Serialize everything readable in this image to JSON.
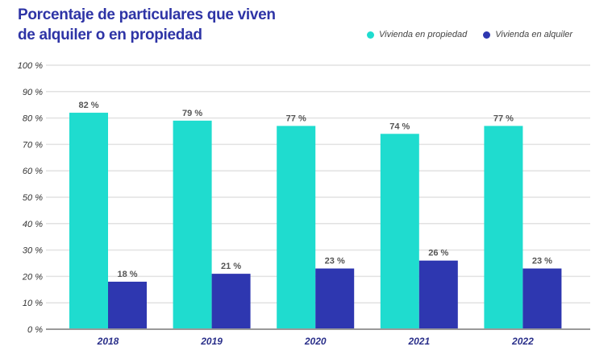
{
  "chart_data": {
    "type": "bar",
    "title": "Porcentaje de particulares que viven de alquiler o en propiedad",
    "title_lines": [
      "Porcentaje de particulares que viven",
      "de alquiler o en propiedad"
    ],
    "categories": [
      "2018",
      "2019",
      "2020",
      "2021",
      "2022"
    ],
    "series": [
      {
        "name": "Vivienda en propiedad",
        "color": "#1fdccf",
        "values": [
          82,
          79,
          77,
          74,
          77
        ],
        "labels": [
          "82 %",
          "79 %",
          "77 %",
          "74 %",
          "77 %"
        ]
      },
      {
        "name": "Vivienda en alquiler",
        "color": "#2e37b0",
        "values": [
          18,
          21,
          23,
          26,
          23
        ],
        "labels": [
          "18 %",
          "21 %",
          "23 %",
          "26 %",
          "23 %"
        ]
      }
    ],
    "yticks": [
      "0 %",
      "10 %",
      "20 %",
      "30 %",
      "40 %",
      "50 %",
      "60 %",
      "70 %",
      "80 %",
      "90 %",
      "100 %"
    ],
    "ylim": [
      0,
      100
    ],
    "xlabel": "",
    "ylabel": "",
    "grid": true,
    "legend": "top-right"
  }
}
